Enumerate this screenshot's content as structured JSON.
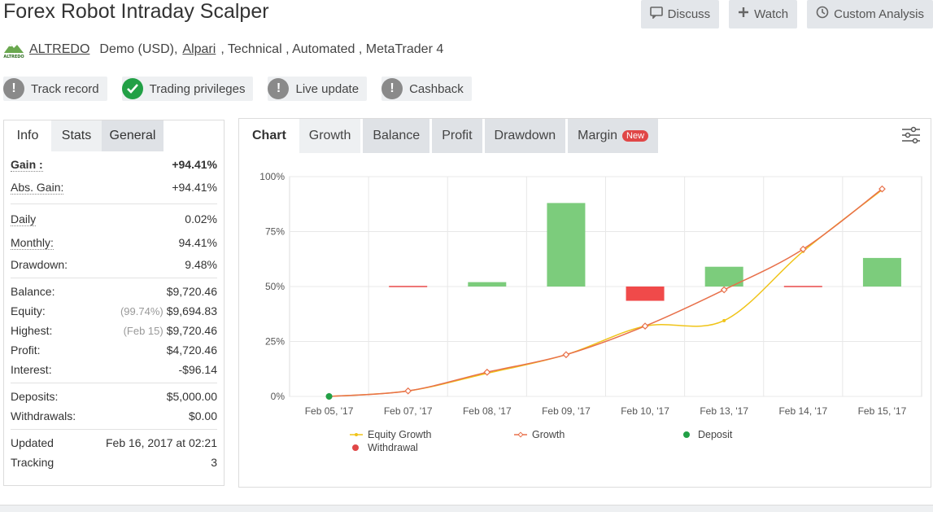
{
  "title": "Forex Robot Intraday Scalper",
  "top_buttons": {
    "discuss": "Discuss",
    "watch": "Watch",
    "custom": "Custom Analysis"
  },
  "sub": {
    "logo_text": "ALTREDO",
    "author": "ALTREDO",
    "account": "Demo (USD),",
    "broker": "Alpari",
    "rest": ", Technical , Automated , MetaTrader 4"
  },
  "badges": [
    {
      "label": "Track record",
      "status": "warn"
    },
    {
      "label": "Trading privileges",
      "status": "ok"
    },
    {
      "label": "Live update",
      "status": "warn"
    },
    {
      "label": "Cashback",
      "status": "warn"
    }
  ],
  "left_tabs": {
    "info": "Info",
    "stats": "Stats",
    "general": "General"
  },
  "stats": {
    "gain_label": "Gain :",
    "gain": "+94.41%",
    "abs_gain_label": "Abs. Gain:",
    "abs_gain": "+94.41%",
    "daily_label": "Daily",
    "daily": "0.02%",
    "monthly_label": "Monthly:",
    "monthly": "94.41%",
    "drawdown_label": "Drawdown:",
    "drawdown": "9.48%",
    "balance_label": "Balance:",
    "balance": "$9,720.46",
    "equity_label": "Equity:",
    "equity_pct": "(99.74%)",
    "equity": "$9,694.83",
    "highest_label": "Highest:",
    "highest_date": "(Feb 15)",
    "highest": "$9,720.46",
    "profit_label": "Profit:",
    "profit": "$4,720.46",
    "interest_label": "Interest:",
    "interest": "-$96.14",
    "deposits_label": "Deposits:",
    "deposits": "$5,000.00",
    "withdrawals_label": "Withdrawals:",
    "withdrawals": "$0.00",
    "updated_label": "Updated",
    "updated": "Feb 16, 2017 at 02:21",
    "tracking_label": "Tracking",
    "tracking": "3"
  },
  "chart_tabs": {
    "chart": "Chart",
    "growth": "Growth",
    "balance": "Balance",
    "profit": "Profit",
    "drawdown": "Drawdown",
    "margin": "Margin",
    "new_badge": "New"
  },
  "chart_data": {
    "type": "line",
    "categories": [
      "Feb 05, '17",
      "Feb 07, '17",
      "Feb 08, '17",
      "Feb 09, '17",
      "Feb 10, '17",
      "Feb 13, '17",
      "Feb 14, '17",
      "Feb 15, '17"
    ],
    "yticks": [
      "0%",
      "25%",
      "50%",
      "75%",
      "100%"
    ],
    "ylim": [
      0,
      100
    ],
    "bars": [
      {
        "category": "Feb 07, '17",
        "value": 0,
        "color": "#e84a4a"
      },
      {
        "category": "Feb 08, '17",
        "value": 2,
        "color": "#7ccc7c"
      },
      {
        "category": "Feb 09, '17",
        "value": 38,
        "color": "#7ccc7c"
      },
      {
        "category": "Feb 10, '17",
        "value": -6.5,
        "color": "#f04a4a"
      },
      {
        "category": "Feb 13, '17",
        "value": 9,
        "color": "#7ccc7c"
      },
      {
        "category": "Feb 14, '17",
        "value": 0,
        "color": "#e84a4a"
      },
      {
        "category": "Feb 15, '17",
        "value": 13,
        "color": "#7ccc7c"
      }
    ],
    "series": [
      {
        "name": "Equity Growth",
        "color": "#f0c419",
        "values": [
          0,
          2.5,
          10.5,
          19,
          32,
          34.5,
          66,
          94
        ]
      },
      {
        "name": "Growth",
        "color": "#e8704a",
        "values": [
          0,
          2.5,
          11,
          19,
          32,
          48.5,
          67,
          94.4
        ]
      }
    ],
    "deposit": {
      "category": "Feb 05, '17",
      "value": 0,
      "color": "#22a046"
    },
    "legend": [
      "Equity Growth",
      "Growth",
      "Deposit",
      "Withdrawal"
    ],
    "legend_colors": {
      "deposit": "#22a046",
      "withdrawal": "#e04747"
    }
  }
}
